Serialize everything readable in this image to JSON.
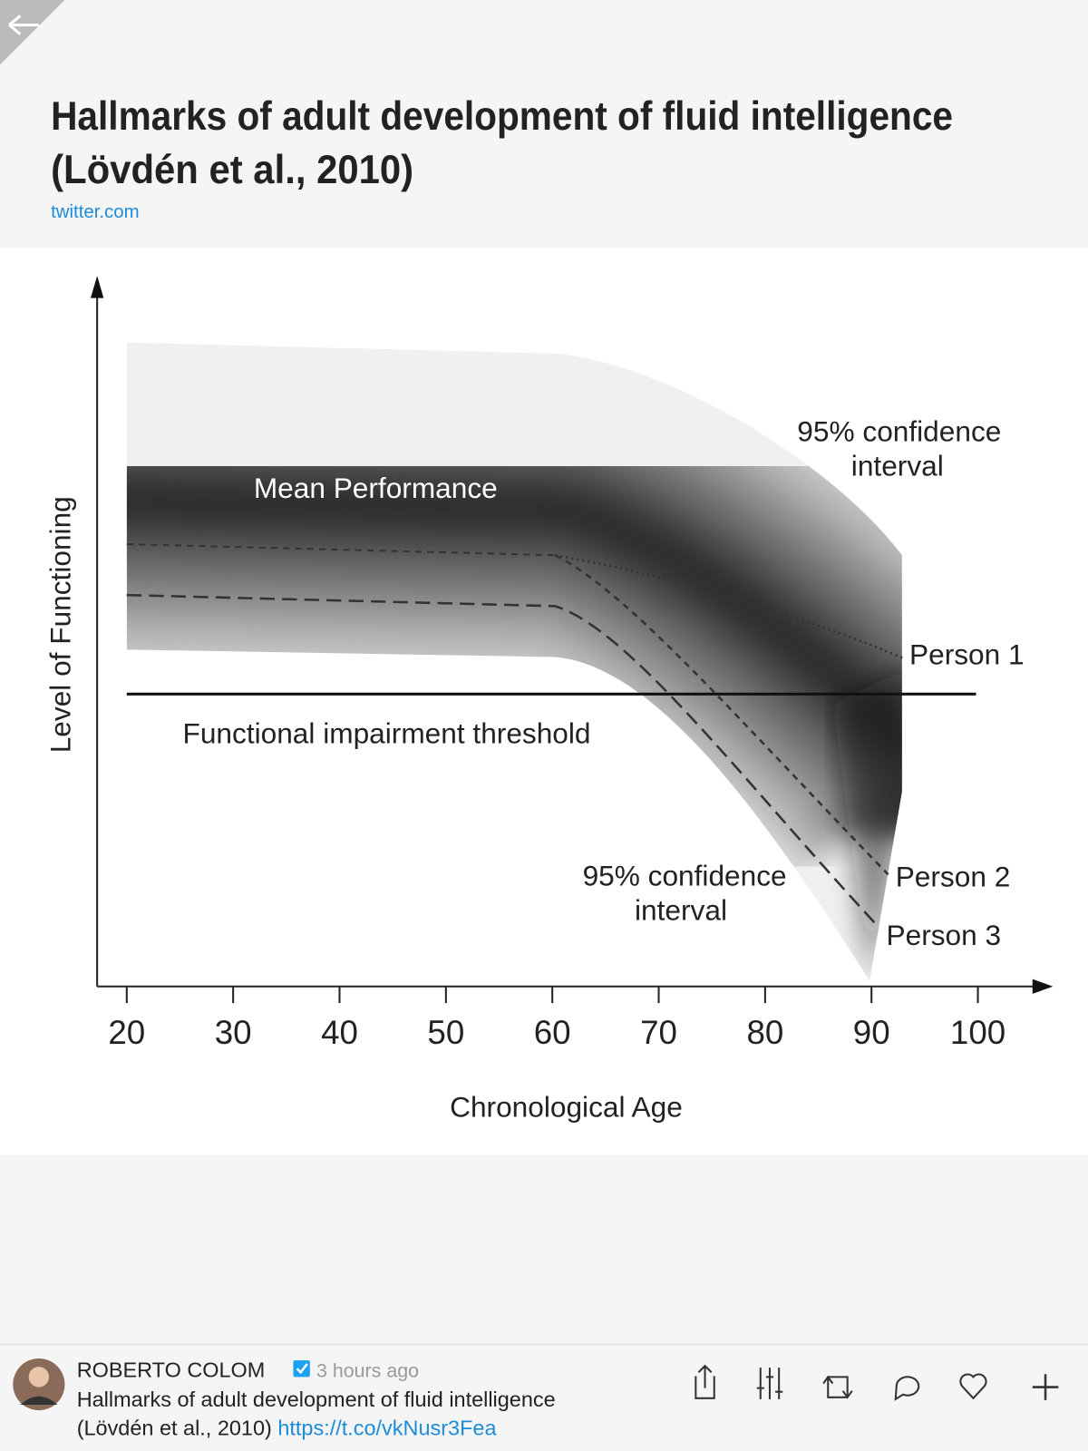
{
  "header": {
    "title_lines": [
      "Hallmarks of adult development of fluid intelligence",
      "(Lövdén et al., 2010)"
    ],
    "source": "twitter.com"
  },
  "chart_data": {
    "type": "band",
    "xlabel": "Chronological Age",
    "ylabel": "Level of Functioning",
    "xlim": [
      17,
      106
    ],
    "xticks": [
      20,
      30,
      40,
      50,
      60,
      70,
      80,
      90,
      100
    ],
    "annotations": {
      "upper_ci": [
        "95% confidence",
        "interval"
      ],
      "mean": "Mean Performance",
      "person1": "Person 1",
      "threshold": "Functional impairment threshold",
      "lower_ci": [
        "95% confidence",
        "interval"
      ],
      "person2": "Person 2",
      "person3": "Person 3"
    }
  },
  "post": {
    "author": "ROBERTO COLOM",
    "time": "3 hours ago",
    "text_lines": [
      "Hallmarks of adult development of fluid intelligence",
      "(Lövdén et al., 2010) "
    ],
    "link": "https://t.co/vkNusr3Fea"
  }
}
